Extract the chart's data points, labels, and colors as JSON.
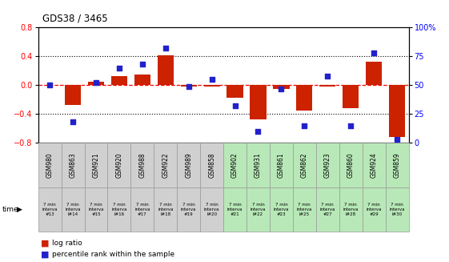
{
  "title": "GDS38 / 3465",
  "samples": [
    "GSM980",
    "GSM863",
    "GSM921",
    "GSM920",
    "GSM988",
    "GSM922",
    "GSM989",
    "GSM858",
    "GSM902",
    "GSM931",
    "GSM861",
    "GSM862",
    "GSM923",
    "GSM860",
    "GSM924",
    "GSM859"
  ],
  "time_labels": [
    "7 min\ninterva\n#13",
    "7 min\ninterva\nl#14",
    "7 min\ninterva\n#15",
    "7 min\ninterva\nl#16",
    "7 min\ninterva\n#17",
    "7 min\ninterva\nl#18",
    "7 min\ninterva\n#19",
    "7 min\ninterva\nl#20",
    "7 min\ninterva\n#21",
    "7 min\ninterva\nl#22",
    "7 min\ninterva\n#23",
    "7 min\ninterva\nl#25",
    "7 min\ninterva\n#27",
    "7 min\ninterva\nl#28",
    "7 min\ninterva\n#29",
    "7 min\ninterva\nl#30"
  ],
  "log_ratio": [
    0.0,
    -0.28,
    0.05,
    0.12,
    0.15,
    0.42,
    -0.02,
    -0.02,
    -0.17,
    -0.47,
    -0.05,
    -0.35,
    -0.02,
    -0.32,
    0.33,
    -0.72
  ],
  "percentile": [
    50,
    18,
    52,
    65,
    68,
    82,
    49,
    55,
    32,
    10,
    47,
    15,
    58,
    15,
    78,
    3
  ],
  "bar_color": "#cc2200",
  "dot_color": "#2222cc",
  "bg_color": "#ffffff",
  "plot_bg": "#ffffff",
  "ylim_left": [
    -0.8,
    0.8
  ],
  "ylim_right": [
    0,
    100
  ],
  "yticks_left": [
    -0.8,
    -0.4,
    0.0,
    0.4,
    0.8
  ],
  "yticks_right": [
    0,
    25,
    50,
    75,
    100
  ],
  "dotted_lines": [
    -0.4,
    0.4
  ],
  "legend_log_ratio": "log ratio",
  "legend_percentile": "percentile rank within the sample",
  "time_label": "time",
  "col_bg_colors": [
    "#d0d0d0",
    "#d0d0d0",
    "#d0d0d0",
    "#d0d0d0",
    "#d0d0d0",
    "#d0d0d0",
    "#d0d0d0",
    "#d0d0d0",
    "#b8e8b8",
    "#b8e8b8",
    "#b8e8b8",
    "#b8e8b8",
    "#b8e8b8",
    "#b8e8b8",
    "#b8e8b8",
    "#b8e8b8"
  ]
}
